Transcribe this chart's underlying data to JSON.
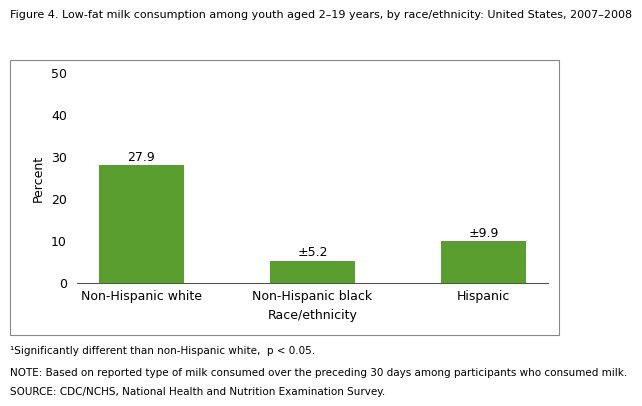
{
  "title": "Figure 4. Low-fat milk consumption among youth aged 2–19 years, by race/ethnicity: United States, 2007–2008",
  "categories": [
    "Non-Hispanic white",
    "Non-Hispanic black",
    "Hispanic"
  ],
  "values": [
    27.9,
    5.2,
    9.9
  ],
  "bar_label_1": "27.9",
  "bar_label_2": "±5.2",
  "bar_label_3": "±9.9",
  "bar_color": "#5a9e2f",
  "ylabel": "Percent",
  "xlabel": "Race/ethnicity",
  "ylim": [
    0,
    50
  ],
  "yticks": [
    0,
    10,
    20,
    30,
    40,
    50
  ],
  "footnote1": "¹Significantly different than non-Hispanic white,  p < 0.05.",
  "footnote2": "NOTE: Based on reported type of milk consumed over the preceding 30 days among participants who consumed milk.",
  "footnote3": "SOURCE: CDC/NCHS, National Health and Nutrition Examination Survey.",
  "title_fontsize": 8.0,
  "axis_label_fontsize": 9,
  "tick_fontsize": 9,
  "bar_label_fontsize": 9,
  "footnote_fontsize": 7.5
}
